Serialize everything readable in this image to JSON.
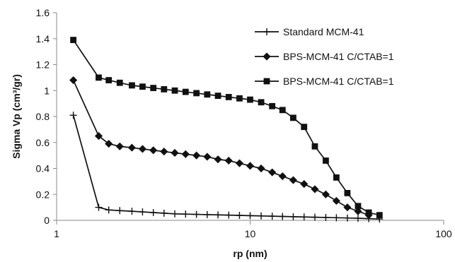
{
  "chart_data": {
    "type": "line",
    "xlabel": "rp (nm)",
    "ylabel": "Sigma Vp (cm³/gr)",
    "x_scale": "log",
    "xlim": [
      1,
      100
    ],
    "ylim": [
      0,
      1.6
    ],
    "x_ticks": [
      1,
      10,
      100
    ],
    "x_tick_labels": [
      "1",
      "10",
      "100"
    ],
    "y_ticks": [
      0,
      0.2,
      0.4,
      0.6,
      0.8,
      1,
      1.2,
      1.4,
      1.6
    ],
    "y_tick_labels": [
      "0",
      "0.2",
      "0.4",
      "0.6",
      "0.8",
      "1",
      "1.2",
      "1.4",
      "1.6"
    ],
    "grid": false,
    "legend_position": "top-right",
    "series": [
      {
        "name": "Standard MCM-41",
        "marker": "plus",
        "x": [
          1.22,
          1.65,
          1.86,
          2.12,
          2.45,
          2.78,
          3.16,
          3.59,
          4.08,
          4.64,
          5.28,
          6.0,
          6.82,
          7.75,
          8.81,
          10.0,
          11.4,
          13.0,
          14.7,
          16.7,
          19.0,
          21.6,
          24.6,
          27.9,
          31.8,
          36.1,
          41.0,
          46.6
        ],
        "y": [
          0.81,
          0.1,
          0.08,
          0.075,
          0.07,
          0.065,
          0.06,
          0.055,
          0.05,
          0.048,
          0.046,
          0.044,
          0.042,
          0.04,
          0.038,
          0.036,
          0.034,
          0.032,
          0.03,
          0.028,
          0.026,
          0.024,
          0.022,
          0.02,
          0.018,
          0.016,
          0.013,
          0.01
        ]
      },
      {
        "name": "BPS-MCM-41 C/CTAB=1",
        "marker": "diamond",
        "x": [
          1.22,
          1.65,
          1.86,
          2.12,
          2.45,
          2.78,
          3.16,
          3.59,
          4.08,
          4.64,
          5.28,
          6.0,
          6.82,
          7.75,
          8.81,
          10.0,
          11.4,
          13.0,
          14.7,
          16.7,
          19.0,
          21.6,
          24.6,
          27.9,
          31.8,
          36.1,
          41.0
        ],
        "y": [
          1.08,
          0.65,
          0.59,
          0.57,
          0.56,
          0.55,
          0.54,
          0.53,
          0.52,
          0.51,
          0.5,
          0.49,
          0.47,
          0.46,
          0.44,
          0.42,
          0.4,
          0.37,
          0.34,
          0.31,
          0.28,
          0.24,
          0.2,
          0.15,
          0.1,
          0.07,
          0.04
        ]
      },
      {
        "name": "BPS-MCM-41 C/CTAB=1",
        "marker": "square",
        "x": [
          1.22,
          1.65,
          1.86,
          2.12,
          2.45,
          2.78,
          3.16,
          3.59,
          4.08,
          4.64,
          5.28,
          6.0,
          6.82,
          7.75,
          8.81,
          10.0,
          11.4,
          13.0,
          14.7,
          16.7,
          19.0,
          21.6,
          24.6,
          27.9,
          31.8,
          36.1,
          41.0,
          46.6
        ],
        "y": [
          1.39,
          1.1,
          1.08,
          1.06,
          1.04,
          1.03,
          1.02,
          1.01,
          1.0,
          0.99,
          0.98,
          0.97,
          0.96,
          0.95,
          0.94,
          0.93,
          0.91,
          0.88,
          0.85,
          0.79,
          0.72,
          0.57,
          0.46,
          0.33,
          0.21,
          0.11,
          0.06,
          0.04
        ]
      }
    ]
  }
}
